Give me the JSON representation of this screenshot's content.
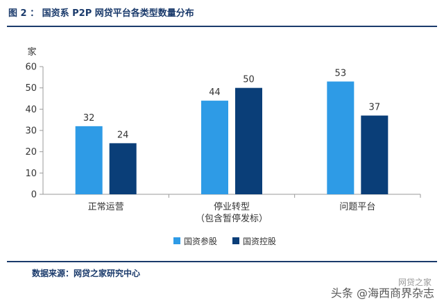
{
  "figure": {
    "title": "图 2 ： 国资系 P2P 网贷平台各类型数量分布",
    "source": "数据来源：网贷之家研究中心"
  },
  "watermark": {
    "text": "头条 @海西商界杂志",
    "text2": "网贷之家"
  },
  "colors": {
    "series_light": "#2e9be6",
    "series_dark": "#0a3e78",
    "axis": "#9a9a9a"
  },
  "chart_data": {
    "type": "bar",
    "title": "",
    "ylabel": "家",
    "xlabel": "",
    "ylim": [
      0,
      60
    ],
    "yticks": [
      0,
      10,
      20,
      30,
      40,
      50,
      60
    ],
    "grid": false,
    "legend_position": "bottom",
    "categories": [
      "正常运营",
      "停业转型\n（包含暂停发标）",
      "问题平台"
    ],
    "series": [
      {
        "name": "国资参股",
        "values": [
          32,
          44,
          53
        ]
      },
      {
        "name": "国资控股",
        "values": [
          24,
          50,
          37
        ]
      }
    ]
  }
}
